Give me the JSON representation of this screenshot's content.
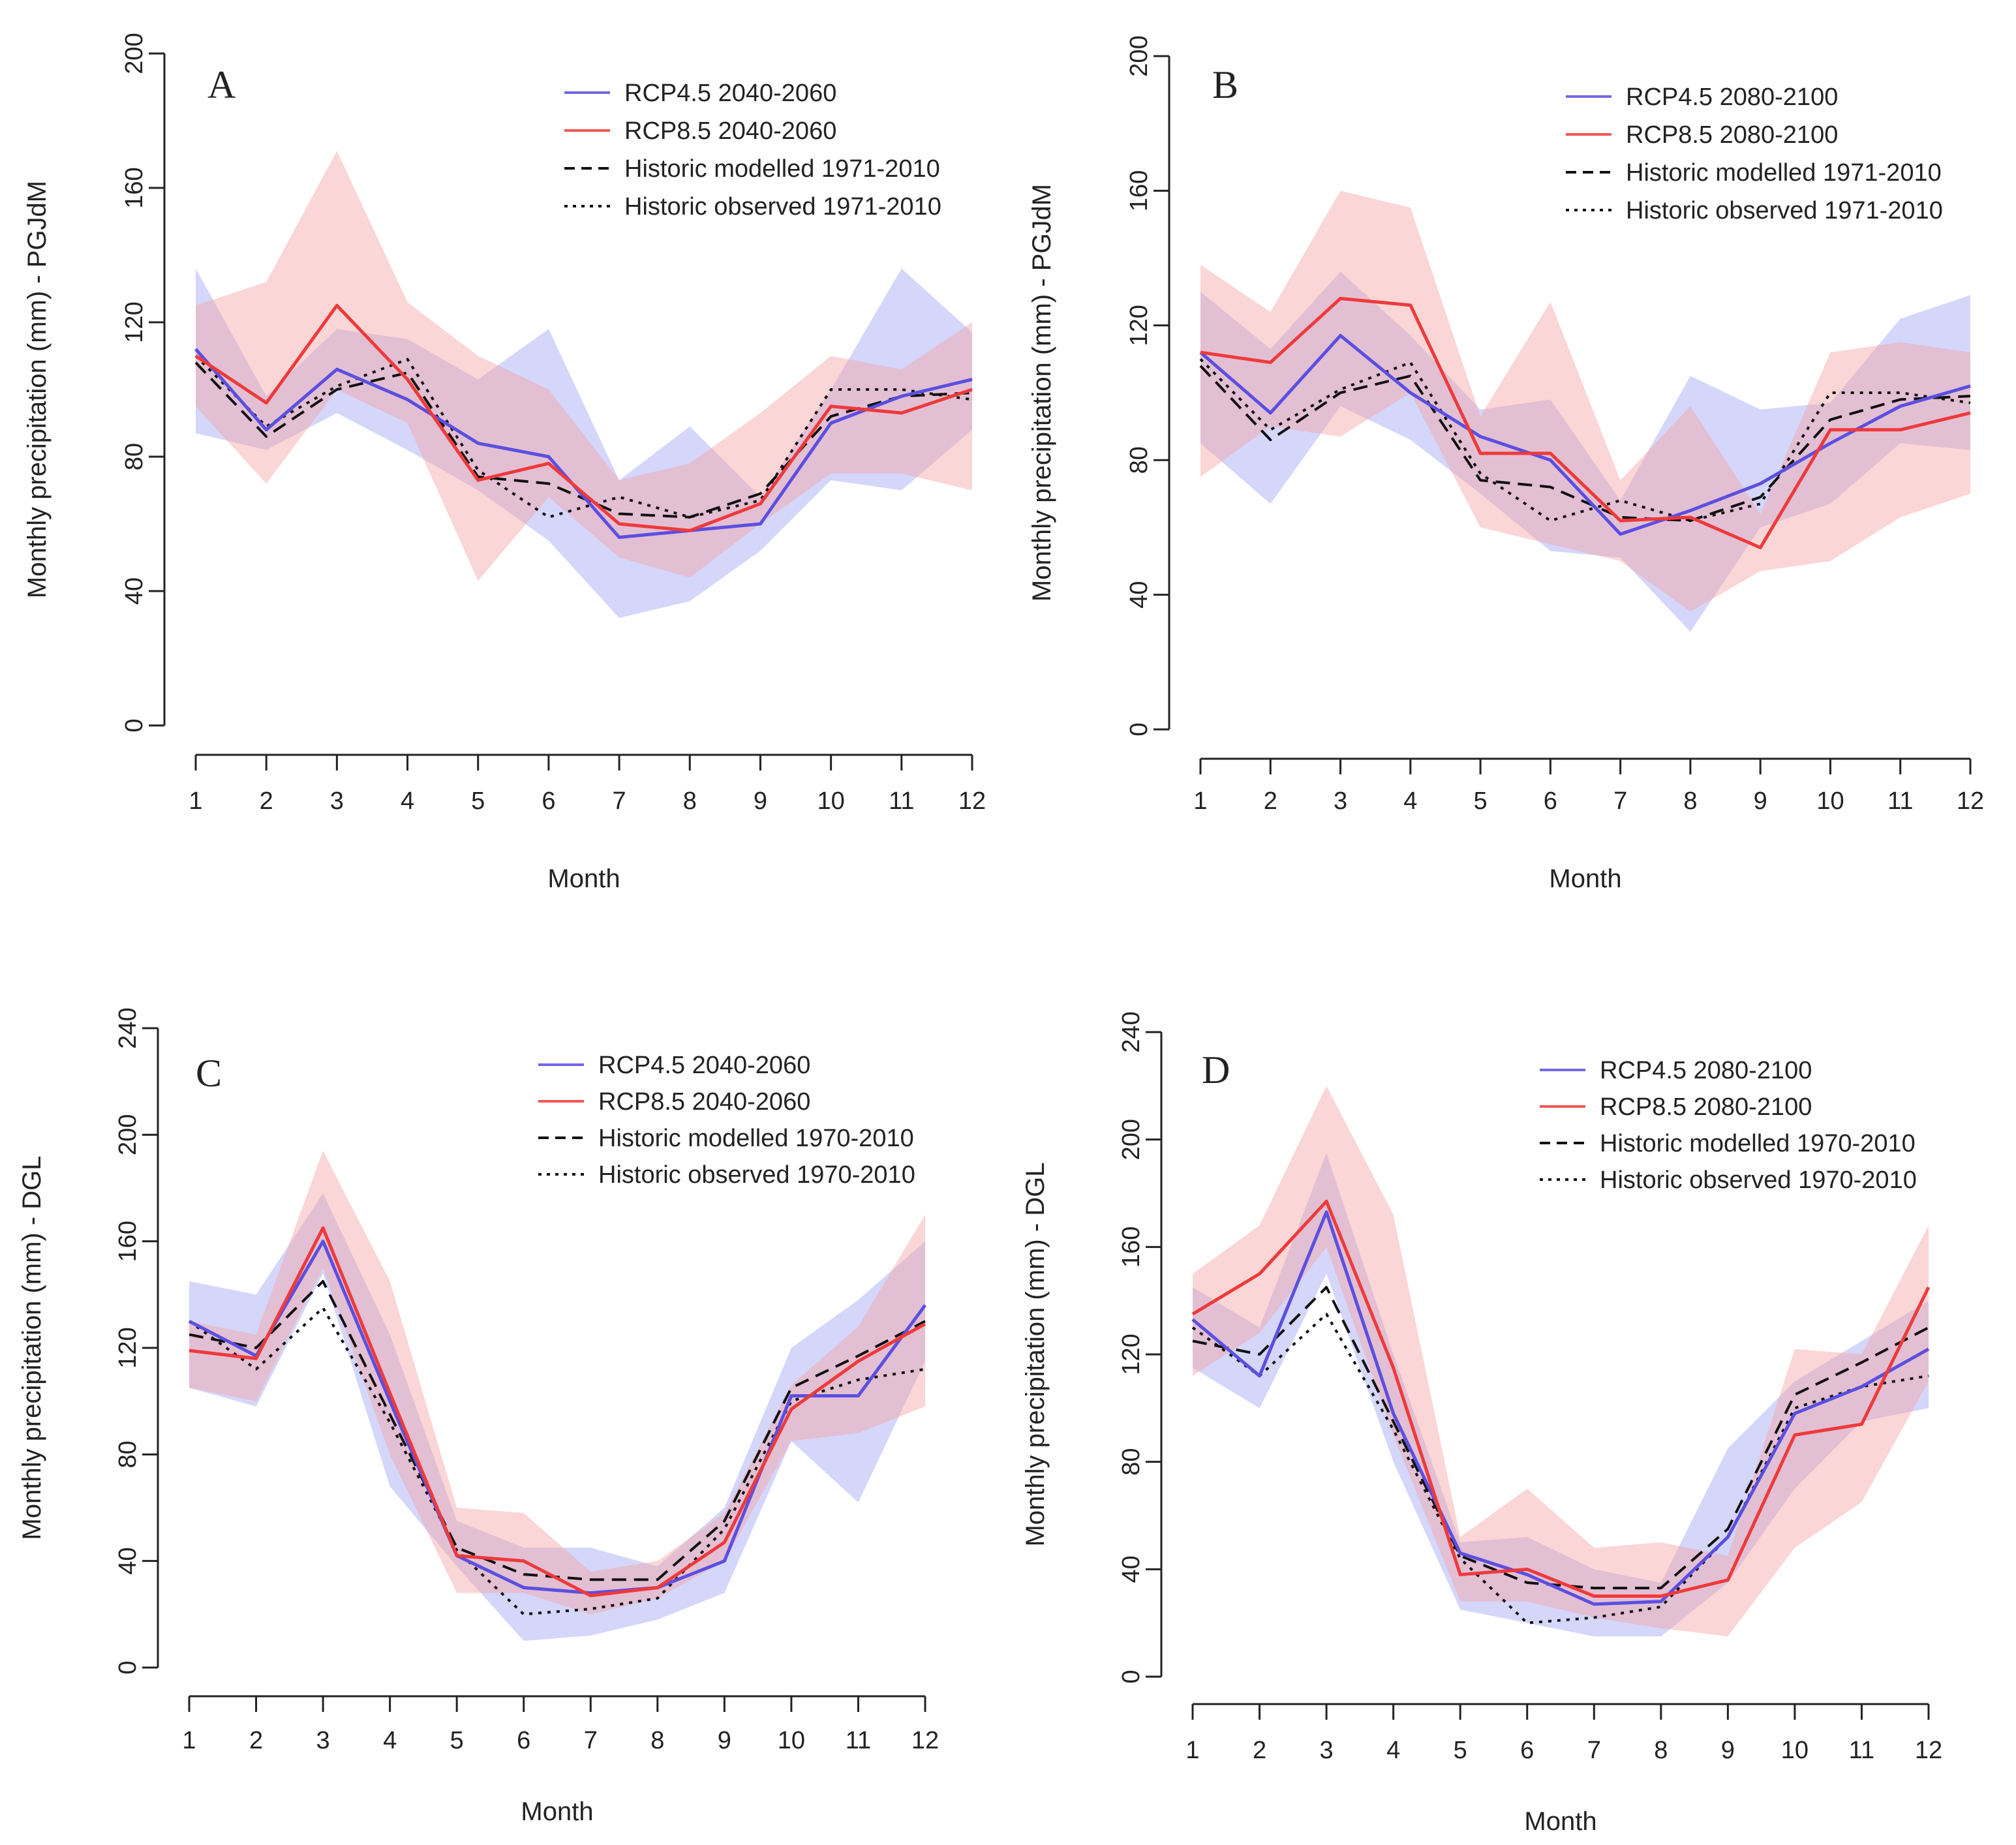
{
  "figure": {
    "xlabel": "Month"
  },
  "chart_data": [
    {
      "type": "line",
      "panel_label": "A",
      "title": "",
      "xlabel": "Month",
      "ylabel": "Monthly precipitation (mm) - PGJdM",
      "x": [
        1,
        2,
        3,
        4,
        5,
        6,
        7,
        8,
        9,
        10,
        11,
        12
      ],
      "ylim": [
        0,
        200
      ],
      "yticks": [
        0,
        40,
        80,
        120,
        160,
        200
      ],
      "legend_position": "top-right",
      "series": [
        {
          "name": "RCP4.5 2040-2060",
          "color": "#5b4fe0",
          "style": "solid",
          "values": [
            112,
            88,
            106,
            97,
            84,
            80,
            56,
            58,
            60,
            90,
            98,
            103
          ],
          "band_lower": [
            87,
            82,
            93,
            82,
            70,
            55,
            32,
            37,
            52,
            73,
            70,
            88
          ],
          "band_upper": [
            136,
            98,
            118,
            115,
            103,
            118,
            73,
            89,
            68,
            100,
            136,
            117
          ],
          "band_color": "#9fa3f5"
        },
        {
          "name": "RCP8.5 2040-2060",
          "color": "#ee3a3a",
          "style": "solid",
          "values": [
            110,
            96,
            125,
            103,
            73,
            78,
            60,
            58,
            66,
            95,
            93,
            100
          ],
          "band_lower": [
            95,
            72,
            100,
            90,
            43,
            68,
            50,
            44,
            60,
            75,
            75,
            70
          ],
          "band_upper": [
            125,
            132,
            171,
            126,
            110,
            100,
            73,
            78,
            93,
            110,
            106,
            120
          ],
          "band_color": "#f7a5a5"
        },
        {
          "name": "Historic modelled 1971-2010",
          "color": "#111111",
          "style": "dashed",
          "values": [
            108,
            86,
            100,
            105,
            74,
            72,
            63,
            62,
            69,
            92,
            98,
            99
          ]
        },
        {
          "name": "Historic observed 1971-2010",
          "color": "#111111",
          "style": "dotted",
          "values": [
            110,
            89,
            101,
            109,
            76,
            62,
            68,
            62,
            67,
            100,
            100,
            97
          ]
        }
      ]
    },
    {
      "type": "line",
      "panel_label": "B",
      "title": "",
      "xlabel": "Month",
      "ylabel": "Monthly precipitation (mm) - PGJdM",
      "x": [
        1,
        2,
        3,
        4,
        5,
        6,
        7,
        8,
        9,
        10,
        11,
        12
      ],
      "ylim": [
        0,
        200
      ],
      "yticks": [
        0,
        40,
        80,
        120,
        160,
        200
      ],
      "legend_position": "top-right",
      "series": [
        {
          "name": "RCP4.5 2080-2100",
          "color": "#5b4fe0",
          "style": "solid",
          "values": [
            112,
            94,
            117,
            100,
            87,
            80,
            58,
            65,
            73,
            85,
            96,
            102
          ],
          "band_lower": [
            85,
            67,
            96,
            86,
            70,
            53,
            51,
            29,
            60,
            67,
            85,
            83
          ],
          "band_upper": [
            130,
            113,
            136,
            117,
            95,
            98,
            68,
            105,
            95,
            97,
            122,
            129
          ],
          "band_color": "#9fa3f5"
        },
        {
          "name": "RCP8.5 2080-2100",
          "color": "#ee3a3a",
          "style": "solid",
          "values": [
            112,
            109,
            128,
            126,
            82,
            82,
            62,
            63,
            54,
            89,
            89,
            94
          ],
          "band_lower": [
            75,
            90,
            87,
            100,
            60,
            55,
            50,
            35,
            47,
            50,
            63,
            70
          ],
          "band_upper": [
            138,
            124,
            160,
            155,
            93,
            127,
            74,
            96,
            64,
            112,
            115,
            112
          ],
          "band_color": "#f7a5a5"
        },
        {
          "name": "Historic modelled 1971-2010",
          "color": "#111111",
          "style": "dashed",
          "values": [
            108,
            86,
            100,
            105,
            74,
            72,
            63,
            62,
            69,
            92,
            98,
            99
          ]
        },
        {
          "name": "Historic observed 1971-2010",
          "color": "#111111",
          "style": "dotted",
          "values": [
            110,
            89,
            101,
            109,
            76,
            62,
            68,
            62,
            67,
            100,
            100,
            97
          ]
        }
      ]
    },
    {
      "type": "line",
      "panel_label": "C",
      "title": "",
      "xlabel": "Month",
      "ylabel": "Monthly precipitation (mm) - DGL",
      "x": [
        1,
        2,
        3,
        4,
        5,
        6,
        7,
        8,
        9,
        10,
        11,
        12
      ],
      "ylim": [
        0,
        240
      ],
      "yticks": [
        0,
        40,
        80,
        120,
        160,
        200,
        240
      ],
      "legend_position": "top-right",
      "series": [
        {
          "name": "RCP4.5 2040-2060",
          "color": "#5b4fe0",
          "style": "solid",
          "values": [
            130,
            117,
            160,
            100,
            42,
            30,
            28,
            30,
            40,
            102,
            102,
            136
          ],
          "band_lower": [
            105,
            98,
            148,
            68,
            38,
            10,
            12,
            18,
            28,
            85,
            62,
            115
          ],
          "band_upper": [
            145,
            140,
            178,
            125,
            55,
            45,
            45,
            38,
            60,
            120,
            138,
            160
          ],
          "band_color": "#9fa3f5"
        },
        {
          "name": "RCP8.5 2040-2060",
          "color": "#ee3a3a",
          "style": "solid",
          "values": [
            119,
            116,
            165,
            103,
            42,
            40,
            27,
            30,
            47,
            97,
            115,
            129
          ],
          "band_lower": [
            105,
            100,
            150,
            80,
            28,
            28,
            20,
            26,
            40,
            85,
            88,
            98
          ],
          "band_upper": [
            130,
            125,
            194,
            145,
            60,
            58,
            36,
            40,
            58,
            106,
            128,
            170
          ],
          "band_color": "#f7a5a5"
        },
        {
          "name": "Historic modelled 1970-2010",
          "color": "#111111",
          "style": "dashed",
          "values": [
            125,
            120,
            145,
            95,
            45,
            35,
            33,
            33,
            55,
            105,
            117,
            130
          ]
        },
        {
          "name": "Historic observed 1970-2010",
          "color": "#111111",
          "style": "dotted",
          "values": [
            130,
            112,
            135,
            92,
            44,
            20,
            22,
            26,
            52,
            100,
            108,
            112
          ]
        }
      ]
    },
    {
      "type": "line",
      "panel_label": "D",
      "title": "",
      "xlabel": "Month",
      "ylabel": "Monthly precipitation (mm) - DGL",
      "x": [
        1,
        2,
        3,
        4,
        5,
        6,
        7,
        8,
        9,
        10,
        11,
        12
      ],
      "ylim": [
        0,
        240
      ],
      "yticks": [
        0,
        40,
        80,
        120,
        160,
        200,
        240
      ],
      "legend_position": "top-right",
      "series": [
        {
          "name": "RCP4.5 2080-2100",
          "color": "#5b4fe0",
          "style": "solid",
          "values": [
            133,
            112,
            173,
            98,
            46,
            38,
            27,
            28,
            52,
            98,
            108,
            122
          ],
          "band_lower": [
            115,
            100,
            150,
            80,
            25,
            20,
            15,
            15,
            35,
            70,
            95,
            100
          ],
          "band_upper": [
            145,
            130,
            195,
            120,
            50,
            52,
            40,
            35,
            85,
            110,
            125,
            140
          ],
          "band_color": "#9fa3f5"
        },
        {
          "name": "RCP8.5 2080-2100",
          "color": "#ee3a3a",
          "style": "solid",
          "values": [
            135,
            150,
            177,
            115,
            38,
            40,
            30,
            30,
            36,
            90,
            94,
            145
          ],
          "band_lower": [
            112,
            128,
            160,
            90,
            28,
            28,
            22,
            18,
            15,
            48,
            65,
            110
          ],
          "band_upper": [
            150,
            168,
            220,
            172,
            52,
            70,
            48,
            50,
            45,
            122,
            120,
            168
          ],
          "band_color": "#f7a5a5"
        },
        {
          "name": "Historic modelled 1970-2010",
          "color": "#111111",
          "style": "dashed",
          "values": [
            125,
            120,
            145,
            95,
            45,
            35,
            33,
            33,
            55,
            105,
            117,
            130
          ]
        },
        {
          "name": "Historic observed 1970-2010",
          "color": "#111111",
          "style": "dotted",
          "values": [
            130,
            112,
            135,
            92,
            44,
            20,
            22,
            26,
            52,
            100,
            108,
            112
          ]
        }
      ]
    }
  ]
}
